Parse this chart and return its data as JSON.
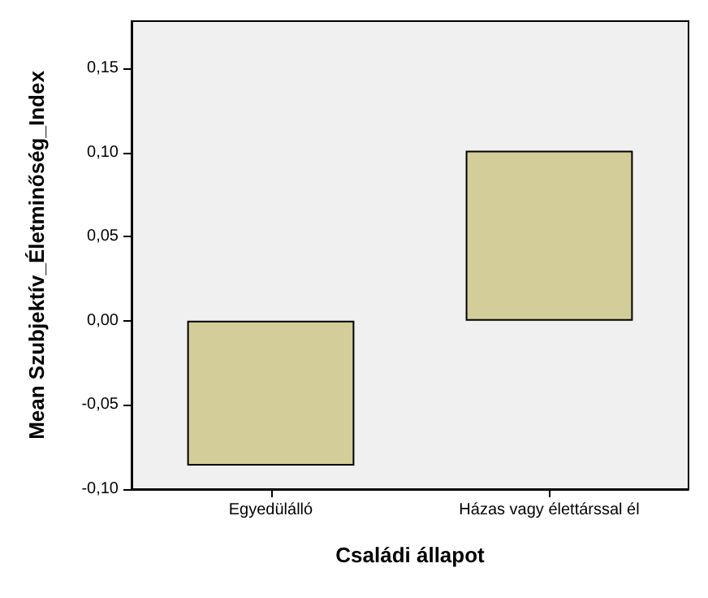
{
  "chart_data": {
    "type": "bar",
    "xlabel": "Családi állapot",
    "ylabel": "Mean Szubjektív_Életminőség_Index",
    "categories": [
      "Egyedülálló",
      "Házas vagy élettárssal él"
    ],
    "values": [
      -0.086,
      0.101
    ],
    "color": "#d3ce99",
    "ylim": [
      -0.1,
      0.178
    ],
    "yticks": [
      {
        "value": -0.1,
        "label": "-0,10"
      },
      {
        "value": -0.05,
        "label": "-0,05"
      },
      {
        "value": 0,
        "label": "0,00"
      },
      {
        "value": 0.05,
        "label": "0,05"
      },
      {
        "value": 0.1,
        "label": "0,10"
      },
      {
        "value": 0.15,
        "label": "0,15"
      }
    ],
    "grid": false
  }
}
